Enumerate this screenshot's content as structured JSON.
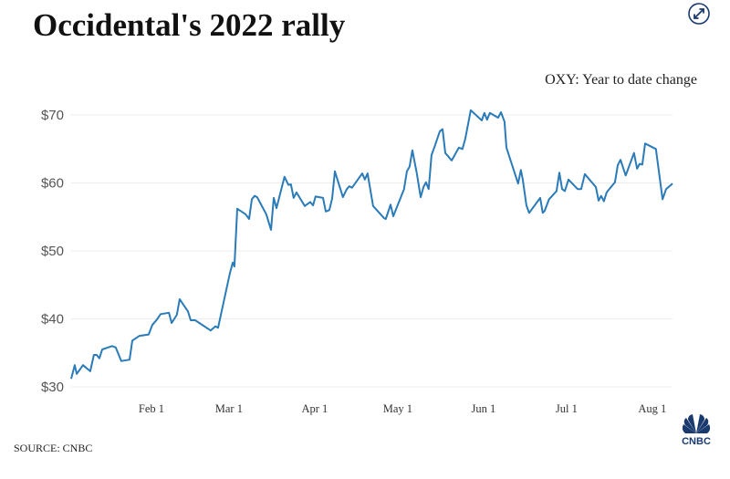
{
  "header": {
    "title": "Occidental's 2022 rally",
    "expand_icon": "expand-arrows-icon"
  },
  "footer": {
    "source": "SOURCE: CNBC",
    "logo_text": "CNBC"
  },
  "colors": {
    "line": "#2a7bb8",
    "grid": "#ececec",
    "brand": "#1a3a6e"
  },
  "chart_data": {
    "type": "line",
    "title": "Occidental's 2022 rally",
    "subtitle": "OXY: Year to date change",
    "xlabel": "",
    "ylabel": "",
    "x_unit": "day of year 2022",
    "xlim": [
      3,
      220.3
    ],
    "ylim": [
      30,
      70
    ],
    "grid": true,
    "yticks": [
      {
        "v": 30,
        "label": "$30"
      },
      {
        "v": 40,
        "label": "$40"
      },
      {
        "v": 50,
        "label": "$50"
      },
      {
        "v": 60,
        "label": "$60"
      },
      {
        "v": 70,
        "label": "$70"
      }
    ],
    "xticks": [
      {
        "v": 32,
        "label": "Feb 1"
      },
      {
        "v": 60,
        "label": "Mar 1"
      },
      {
        "v": 91,
        "label": "Apr 1"
      },
      {
        "v": 121,
        "label": "May 1"
      },
      {
        "v": 152,
        "label": "Jun 1"
      },
      {
        "v": 182,
        "label": "Jul 1"
      },
      {
        "v": 213,
        "label": "Aug 1"
      }
    ],
    "series": [
      {
        "name": "OXY",
        "x": [
          3.0,
          4.3,
          5.0,
          7.3,
          9.9,
          11.2,
          12.2,
          13.2,
          14.2,
          17.8,
          19.1,
          21.1,
          24.1,
          25.1,
          27.7,
          31.0,
          32.3,
          34.0,
          35.3,
          38.3,
          39.3,
          41.2,
          42.2,
          45.2,
          46.2,
          47.8,
          53.4,
          55.1,
          56.1,
          58.7,
          60.4,
          61.4,
          62.0,
          63.0,
          66.0,
          67.3,
          68.3,
          69.3,
          70.2,
          73.5,
          75.2,
          76.2,
          77.2,
          80.1,
          81.5,
          82.4,
          83.4,
          84.4,
          87.4,
          89.4,
          90.4,
          91.3,
          94.0,
          95.0,
          96.3,
          97.3,
          98.3,
          101.2,
          102.6,
          103.5,
          104.5,
          108.2,
          109.1,
          110.1,
          112.1,
          116.1,
          116.7,
          118.4,
          119.4,
          123.3,
          124.3,
          125.3,
          126.3,
          127.9,
          129.3,
          130.3,
          131.2,
          132.2,
          133.2,
          134.2,
          136.2,
          137.2,
          138.2,
          140.5,
          143.1,
          144.4,
          145.4,
          147.4,
          151.4,
          152.3,
          153.3,
          154.3,
          157.3,
          158.3,
          159.6,
          160.3,
          164.5,
          165.5,
          166.2,
          167.5,
          168.5,
          172.5,
          173.4,
          174.1,
          175.7,
          178.4,
          179.4,
          180.4,
          181.4,
          182.7,
          186.0,
          187.3,
          188.6,
          190.3,
          192.6,
          193.6,
          194.5,
          195.5,
          196.5,
          199.5,
          200.5,
          201.5,
          203.4,
          206.4,
          207.5,
          208.4,
          209.4,
          210.4,
          214.3,
          216.7,
          218.0,
          220.3
        ],
        "values": [
          31.2,
          33.2,
          31.9,
          33.2,
          32.3,
          34.7,
          34.7,
          34.2,
          35.5,
          36.0,
          35.8,
          33.8,
          34.0,
          36.8,
          37.5,
          37.7,
          39.1,
          39.9,
          40.7,
          40.9,
          39.4,
          40.6,
          42.9,
          41.1,
          39.8,
          39.8,
          38.3,
          38.9,
          38.7,
          43.6,
          46.8,
          48.3,
          47.7,
          56.2,
          55.4,
          54.7,
          57.6,
          58.1,
          57.9,
          55.4,
          53.1,
          57.8,
          56.3,
          60.9,
          59.7,
          59.8,
          57.8,
          58.6,
          56.6,
          57.2,
          56.7,
          58.0,
          57.8,
          55.8,
          56.0,
          57.7,
          61.7,
          57.9,
          59.1,
          59.5,
          59.3,
          61.4,
          60.5,
          61.4,
          56.6,
          54.8,
          54.7,
          56.8,
          55.1,
          59.1,
          61.7,
          62.4,
          64.8,
          61.4,
          57.9,
          59.4,
          60.1,
          59.1,
          64.1,
          65.2,
          67.6,
          67.9,
          64.4,
          63.3,
          65.2,
          65.0,
          66.5,
          70.7,
          69.2,
          70.3,
          69.3,
          70.3,
          69.6,
          70.4,
          69.0,
          65.2,
          59.9,
          61.9,
          60.5,
          56.7,
          55.6,
          57.8,
          55.6,
          55.9,
          57.6,
          58.8,
          61.5,
          59.1,
          58.8,
          60.5,
          59.1,
          59.1,
          61.3,
          60.5,
          59.4,
          57.4,
          58.1,
          57.3,
          58.6,
          60.1,
          62.6,
          63.4,
          61.1,
          64.4,
          62.1,
          62.8,
          62.7,
          65.8,
          65.0,
          57.6,
          59.1,
          59.9
        ]
      }
    ]
  }
}
